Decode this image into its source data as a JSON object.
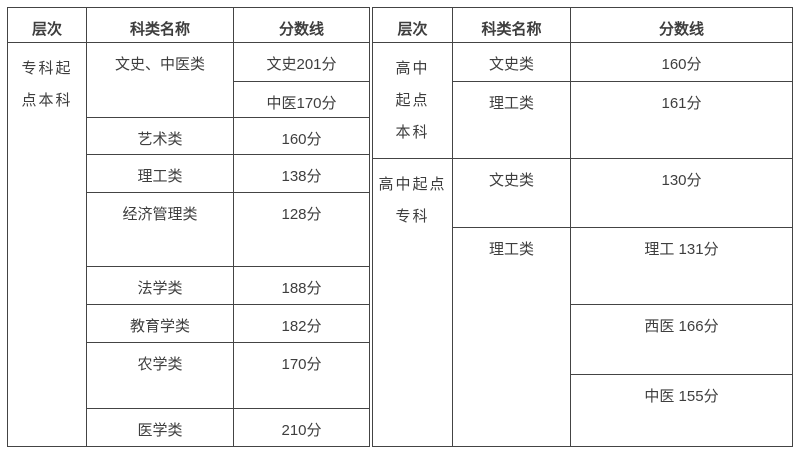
{
  "page": {
    "background": "#ffffff",
    "text_color": "#3e3e3e",
    "border_color": "#444444"
  },
  "left_table": {
    "headers": [
      "层次",
      "科类名称",
      "分数线"
    ],
    "level": "专科起\n点本科",
    "rows": [
      {
        "category": "文史、中医类",
        "score": "文史201分"
      },
      {
        "score": "中医170分"
      },
      {
        "category": "艺术类",
        "score": "160分"
      },
      {
        "category": "理工类",
        "score": "138分"
      },
      {
        "category": "经济管理类",
        "score": "128分"
      },
      {
        "category": "法学类",
        "score": "188分"
      },
      {
        "category": "教育学类",
        "score": "182分"
      },
      {
        "category": "农学类",
        "score": "170分"
      },
      {
        "category": "医学类",
        "score": "210分"
      }
    ]
  },
  "right_table": {
    "headers": [
      "层次",
      "科类名称",
      "分数线"
    ],
    "sections": [
      {
        "level": "高中\n起点\n本科",
        "rows": [
          {
            "category": "文史类",
            "score": "160分"
          },
          {
            "category": "理工类",
            "score": "161分"
          }
        ]
      },
      {
        "level": "高中起点\n专科",
        "rows": [
          {
            "category": "文史类",
            "score": "130分"
          },
          {
            "category": "理工类",
            "score": "理工 131分"
          },
          {
            "score": "西医 166分"
          },
          {
            "score": "中医 155分"
          }
        ]
      }
    ]
  }
}
